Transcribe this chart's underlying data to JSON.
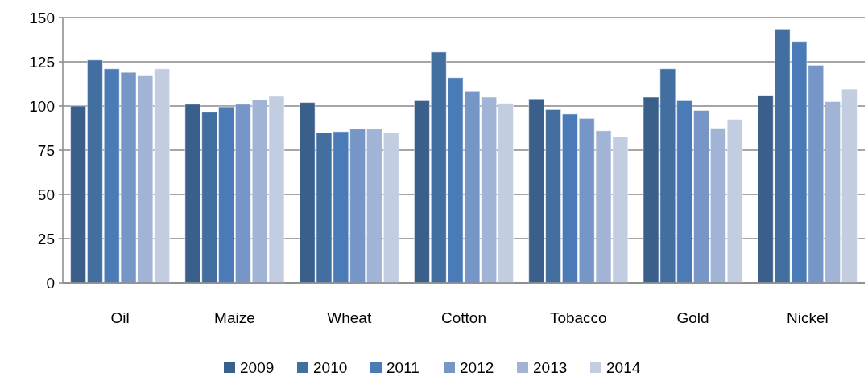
{
  "chart_data": {
    "type": "bar",
    "categories": [
      "Oil",
      "Maize",
      "Wheat",
      "Cotton",
      "Tobacco",
      "Gold",
      "Nickel"
    ],
    "series": [
      {
        "name": "2009",
        "color": "#3a5f8b",
        "values": [
          100,
          101,
          102,
          103,
          104,
          105,
          106
        ]
      },
      {
        "name": "2010",
        "color": "#426ea0",
        "values": [
          126,
          96.5,
          85,
          130.5,
          98,
          121,
          143.5
        ]
      },
      {
        "name": "2011",
        "color": "#4a7bb7",
        "values": [
          121,
          99.5,
          85.5,
          116,
          95.5,
          103,
          136.5
        ]
      },
      {
        "name": "2012",
        "color": "#7596c6",
        "values": [
          119,
          101,
          87,
          108.5,
          93,
          97.5,
          123
        ]
      },
      {
        "name": "2013",
        "color": "#a1b4d5",
        "values": [
          117.5,
          103.5,
          87,
          105,
          86,
          87.5,
          102.5
        ]
      },
      {
        "name": "2014",
        "color": "#c3cde1",
        "values": [
          121,
          105.5,
          85,
          101.5,
          82.5,
          92.5,
          109.5
        ]
      }
    ],
    "ylim": [
      0,
      150
    ],
    "yticks": [
      0,
      25,
      50,
      75,
      100,
      125,
      150
    ],
    "grid": "y",
    "legend": "bottom"
  }
}
